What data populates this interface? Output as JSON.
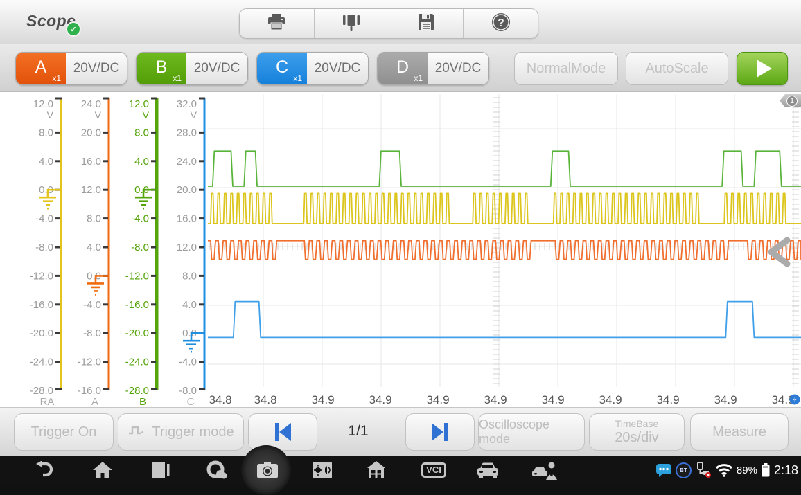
{
  "header": {
    "title": "Scope",
    "status_badge_icon": "check",
    "toolbar_icons": [
      "printer-icon",
      "probe-connect-icon",
      "save-icon",
      "help-icon"
    ]
  },
  "channel_bar": {
    "channels": [
      {
        "id": "A",
        "scale": "x1",
        "range": "20V/DC",
        "color": "#EA5A0C"
      },
      {
        "id": "B",
        "scale": "x1",
        "range": "20V/DC",
        "color": "#5CA70E"
      },
      {
        "id": "C",
        "scale": "x1",
        "range": "20V/DC",
        "color": "#1E8FE6"
      },
      {
        "id": "D",
        "scale": "x1",
        "range": "20V/DC",
        "color": "#9C9C9C"
      }
    ],
    "normal_mode": "NormalMode",
    "auto_scale": "AutoScale",
    "run_icon": "play"
  },
  "chart": {
    "page_marker": "1",
    "axes": [
      {
        "name": "RA",
        "color": "#E4C41B",
        "label_color": "#9b9b9b",
        "unit": "V",
        "max": 12.0,
        "min": -28.0,
        "step": 4.0,
        "ground": 0.0
      },
      {
        "name": "A",
        "color": "#F06A10",
        "label_color": "#9b9b9b",
        "unit": "V",
        "max": 24.0,
        "min": -16.0,
        "step": 4.0,
        "ground": 0.0
      },
      {
        "name": "B",
        "color": "#55A40A",
        "label_color": "#55A40A",
        "unit": "V",
        "max": 12.0,
        "min": -28.0,
        "step": 4.0,
        "ground": 0.0
      },
      {
        "name": "C",
        "color": "#1E8FE1",
        "label_color": "#9b9b9b",
        "unit": "V",
        "max": 32.0,
        "min": -8.0,
        "step": 4.0,
        "ground": 0.0
      }
    ],
    "x_labels": [
      "34.8",
      "34.8",
      "34.9",
      "34.9",
      "34.9",
      "34.9",
      "34.9",
      "34.9",
      "34.9",
      "34.9",
      "34.9"
    ],
    "waveforms": [
      {
        "channel": "B",
        "type": "pulses",
        "color": "#59B53A",
        "baseline_v": 0.5,
        "high_v": 5.4,
        "pulses_t": [
          [
            0.008,
            0.042
          ],
          [
            0.061,
            0.083
          ],
          [
            0.289,
            0.326
          ],
          [
            0.578,
            0.611
          ],
          [
            0.867,
            0.902
          ],
          [
            0.921,
            0.967
          ]
        ]
      },
      {
        "channel": "RA",
        "type": "pulse_train_up",
        "color": "#DCC51C",
        "baseline_v": -4.7,
        "high_v": -0.5,
        "period_t": 0.0109,
        "gaps_t": [
          [
            0.11,
            0.157
          ],
          [
            0.411,
            0.442
          ],
          [
            0.541,
            0.578
          ],
          [
            0.833,
            0.866
          ],
          [
            0.976,
            1.0
          ]
        ]
      },
      {
        "channel": "A",
        "type": "pulse_train_down",
        "color": "#F06E2E",
        "baseline_v": 4.9,
        "low_v": 2.3,
        "period_t": 0.0129,
        "gaps_t": [
          [
            0.12,
            0.158
          ],
          [
            0.543,
            0.581
          ],
          [
            0.874,
            0.905
          ]
        ]
      },
      {
        "channel": "C",
        "type": "pulses",
        "color": "#3F9FE8",
        "baseline_v": -0.6,
        "high_v": 4.4,
        "pulses_t": [
          [
            0.043,
            0.089
          ],
          [
            0.873,
            0.921
          ]
        ]
      }
    ]
  },
  "bottom_bar": {
    "trigger_on": "Trigger On",
    "trigger_mode": "Trigger mode",
    "page": "1/1",
    "oscilloscope_mode": "Oscilloscope mode",
    "timebase_label": "TimeBase",
    "timebase_value": "20s/div",
    "measure": "Measure"
  },
  "nav_bar": {
    "icons": [
      "back-icon",
      "home-icon",
      "recents-icon",
      "sync-icon",
      "camera-icon",
      "display-icon",
      "hub-icon",
      "vci-icon",
      "vehicle-icon",
      "service-icon"
    ],
    "vci_label": "VCI",
    "bt_label": "BT",
    "battery_percent": "89%",
    "time": "2:18"
  }
}
